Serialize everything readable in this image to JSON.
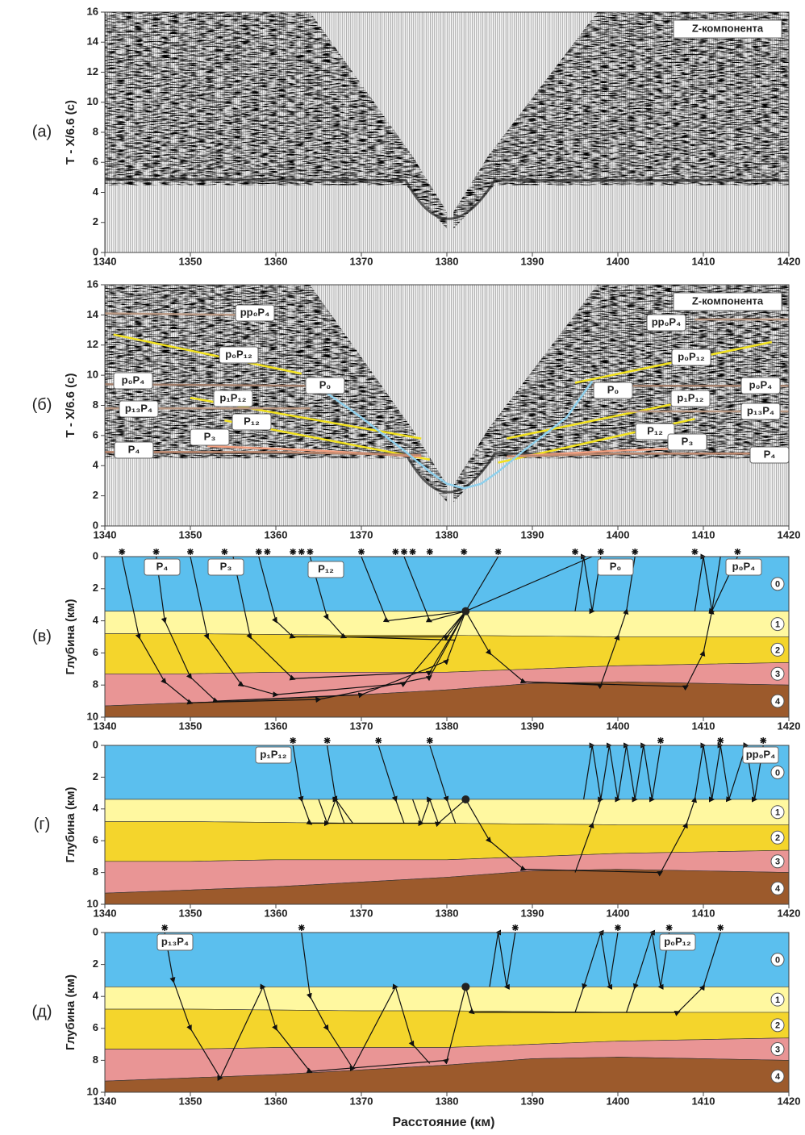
{
  "xlabel": "Расстояние (км)",
  "chart_data": [
    {
      "type": "seismogram",
      "panel_label": "(а)",
      "ylabel": "T - X/6.6 (с)",
      "annotation": "Z-компонента",
      "xlim": [
        1340,
        1420
      ],
      "xticks": [
        1340,
        1350,
        1360,
        1370,
        1380,
        1390,
        1400,
        1410,
        1420
      ],
      "ylim": [
        0,
        16
      ],
      "yticks": [
        0,
        2,
        4,
        6,
        8,
        10,
        12,
        14,
        16
      ],
      "series": []
    },
    {
      "type": "seismogram",
      "panel_label": "(б)",
      "ylabel": "T - X/6.6 (с)",
      "annotation": "Z-компонента",
      "xlim": [
        1340,
        1420
      ],
      "xticks": [
        1340,
        1350,
        1360,
        1370,
        1380,
        1390,
        1400,
        1410,
        1420
      ],
      "ylim": [
        0,
        16
      ],
      "yticks": [
        0,
        2,
        4,
        6,
        8,
        10,
        12,
        14,
        16
      ],
      "series": [
        {
          "name": "pp₀P₄",
          "color": "#b99883",
          "x": [
            1340,
            1356,
            1400,
            1409,
            1420
          ],
          "values": [
            14.1,
            14,
            null,
            13.7,
            13.7
          ]
        },
        {
          "name": "p₀P₁₂",
          "color": "#f2e21e",
          "x": [
            1341,
            1363,
            1380,
            1395,
            1418
          ],
          "values": [
            12.7,
            10.1,
            null,
            9.5,
            12.2
          ]
        },
        {
          "name": "p₀P₄",
          "color": "#a07c68",
          "x": [
            1340,
            1364,
            1380,
            1397,
            1420
          ],
          "values": [
            9.4,
            9.3,
            null,
            9.3,
            9.3
          ]
        },
        {
          "name": "p₁P₁₂",
          "color": "#f2e21e",
          "x": [
            1350,
            1377,
            1382,
            1387,
            1410
          ],
          "values": [
            8.5,
            5.8,
            null,
            5.8,
            8.5
          ]
        },
        {
          "name": "p₁₃P₄",
          "color": "#b99883",
          "x": [
            1340,
            1364,
            1380,
            1400,
            1420
          ],
          "values": [
            7.8,
            7.8,
            null,
            7.6,
            7.6
          ]
        },
        {
          "name": "P₁₂",
          "color": "#f2e21e",
          "x": [
            1354,
            1378,
            1382,
            1386,
            1409
          ],
          "values": [
            7,
            4.4,
            null,
            4.2,
            7.1
          ]
        },
        {
          "name": "P₃",
          "color": "#f4a080",
          "x": [
            1352,
            1365,
            1377,
            1382,
            1387,
            1400,
            1410
          ],
          "values": [
            5.3,
            5,
            4.6,
            null,
            4.6,
            5,
            5.2
          ]
        },
        {
          "name": "P₄",
          "color": "#c08a70",
          "x": [
            1340,
            1360,
            1377,
            1382,
            1387,
            1400,
            1420
          ],
          "values": [
            4.9,
            4.9,
            4.7,
            null,
            4.6,
            4.8,
            4.8
          ]
        },
        {
          "name": "P₀",
          "color": "#8fd0ec",
          "x": [
            1364,
            1370,
            1375,
            1378,
            1380,
            1382,
            1384,
            1386,
            1389,
            1394,
            1397
          ],
          "values": [
            9.6,
            7.2,
            5,
            3.6,
            2.8,
            2.5,
            2.8,
            3.6,
            5,
            7.2,
            9.6
          ]
        }
      ]
    },
    {
      "type": "section",
      "panel_label": "(в)",
      "ylabel": "Глубина (км)",
      "annotations": [
        "P₄",
        "P₃",
        "P₁₂",
        "P₀",
        "p₀P₄"
      ],
      "xlim": [
        1340,
        1420
      ],
      "xticks": [
        1340,
        1350,
        1360,
        1370,
        1380,
        1390,
        1400,
        1410,
        1420
      ],
      "ylim": [
        0,
        10
      ],
      "yticks": [
        0,
        2,
        4,
        6,
        8,
        10
      ],
      "inverted": true,
      "x": [
        1340,
        1350,
        1360,
        1370,
        1380,
        1390,
        1400,
        1410,
        1420
      ],
      "series": [
        {
          "name": "0",
          "color": "#5bbfee",
          "values": [
            3.4,
            3.4,
            3.4,
            3.4,
            3.4,
            3.4,
            3.4,
            3.4,
            3.4
          ]
        },
        {
          "name": "1",
          "color": "#fff8a0",
          "values": [
            4.8,
            4.8,
            4.85,
            4.9,
            4.9,
            4.95,
            5,
            5,
            5
          ]
        },
        {
          "name": "2",
          "color": "#f4d52c",
          "values": [
            7.3,
            7.3,
            7.2,
            7.2,
            7.2,
            7,
            6.8,
            6.7,
            6.6
          ]
        },
        {
          "name": "3",
          "color": "#e99595",
          "values": [
            9.3,
            9.1,
            8.9,
            8.6,
            8.3,
            7.9,
            7.8,
            7.9,
            8
          ]
        },
        {
          "name": "4",
          "color": "#9c5a2c",
          "values": [
            10,
            10,
            10,
            10,
            10,
            10,
            10,
            10,
            10
          ]
        }
      ]
    },
    {
      "type": "section",
      "panel_label": "(г)",
      "ylabel": "Глубина (км)",
      "annotations": [
        "p₁P₁₂",
        "pp₀P₄"
      ],
      "xlim": [
        1340,
        1420
      ],
      "xticks": [
        1340,
        1350,
        1360,
        1370,
        1380,
        1390,
        1400,
        1410,
        1420
      ],
      "ylim": [
        0,
        10
      ],
      "yticks": [
        0,
        2,
        4,
        6,
        8,
        10
      ],
      "inverted": true,
      "x": [
        1340,
        1350,
        1360,
        1370,
        1380,
        1390,
        1400,
        1410,
        1420
      ],
      "series": [
        {
          "name": "0",
          "color": "#5bbfee",
          "values": [
            3.4,
            3.4,
            3.4,
            3.4,
            3.4,
            3.4,
            3.4,
            3.4,
            3.4
          ]
        },
        {
          "name": "1",
          "color": "#fff8a0",
          "values": [
            4.8,
            4.8,
            4.85,
            4.9,
            4.9,
            4.95,
            5,
            5,
            5
          ]
        },
        {
          "name": "2",
          "color": "#f4d52c",
          "values": [
            7.3,
            7.3,
            7.2,
            7.2,
            7.2,
            7,
            6.8,
            6.7,
            6.6
          ]
        },
        {
          "name": "3",
          "color": "#e99595",
          "values": [
            9.3,
            9.1,
            8.9,
            8.6,
            8.3,
            7.9,
            7.8,
            7.9,
            8
          ]
        },
        {
          "name": "4",
          "color": "#9c5a2c",
          "values": [
            10,
            10,
            10,
            10,
            10,
            10,
            10,
            10,
            10
          ]
        }
      ]
    },
    {
      "type": "section",
      "panel_label": "(д)",
      "ylabel": "Глубина (км)",
      "annotations": [
        "p₁₃P₄",
        "p₀P₁₂"
      ],
      "xlim": [
        1340,
        1420
      ],
      "xticks": [
        1340,
        1350,
        1360,
        1370,
        1380,
        1390,
        1400,
        1410,
        1420
      ],
      "ylim": [
        0,
        10
      ],
      "yticks": [
        0,
        2,
        4,
        6,
        8,
        10
      ],
      "inverted": true,
      "x": [
        1340,
        1350,
        1360,
        1370,
        1380,
        1390,
        1400,
        1410,
        1420
      ],
      "series": [
        {
          "name": "0",
          "color": "#5bbfee",
          "values": [
            3.4,
            3.4,
            3.4,
            3.4,
            3.4,
            3.4,
            3.4,
            3.4,
            3.4
          ]
        },
        {
          "name": "1",
          "color": "#fff8a0",
          "values": [
            4.8,
            4.8,
            4.85,
            4.9,
            4.9,
            4.95,
            5,
            5,
            5
          ]
        },
        {
          "name": "2",
          "color": "#f4d52c",
          "values": [
            7.3,
            7.3,
            7.2,
            7.2,
            7.2,
            7,
            6.8,
            6.7,
            6.6
          ]
        },
        {
          "name": "3",
          "color": "#e99595",
          "values": [
            9.3,
            9.1,
            8.9,
            8.6,
            8.3,
            7.9,
            7.8,
            7.9,
            8
          ]
        },
        {
          "name": "4",
          "color": "#9c5a2c",
          "values": [
            10,
            10,
            10,
            10,
            10,
            10,
            10,
            10,
            10
          ]
        }
      ]
    }
  ]
}
